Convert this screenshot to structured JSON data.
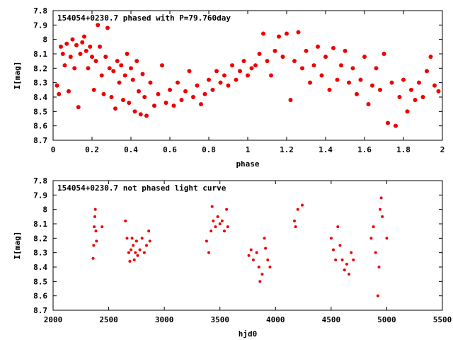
{
  "chart_data": [
    {
      "type": "scatter",
      "title": "154054+0230.7 phased with P=79.760day",
      "xlabel": "phase",
      "ylabel": "I[mag]",
      "xlim": [
        0,
        2
      ],
      "ylim": [
        8.7,
        7.8
      ],
      "y_inverted": true,
      "xticks": [
        "0",
        "0.2",
        "0.4",
        "0.6",
        "0.8",
        "1",
        "1.2",
        "1.4",
        "1.6",
        "1.8",
        "2"
      ],
      "yticks": [
        "7.8",
        "7.9",
        "8",
        "8.1",
        "8.2",
        "8.3",
        "8.4",
        "8.5",
        "8.6",
        "8.7"
      ],
      "marker_color": "#ee0000",
      "grid": false,
      "series": [
        {
          "points": [
            [
              0.02,
              8.32
            ],
            [
              0.03,
              8.38
            ],
            [
              0.04,
              8.05
            ],
            [
              0.05,
              8.1
            ],
            [
              0.06,
              8.18
            ],
            [
              0.07,
              8.03
            ],
            [
              0.08,
              8.36
            ],
            [
              0.09,
              8.12
            ],
            [
              0.1,
              8.0
            ],
            [
              0.11,
              8.2
            ],
            [
              0.12,
              8.04
            ],
            [
              0.13,
              8.47
            ],
            [
              0.14,
              8.1
            ],
            [
              0.15,
              8.02
            ],
            [
              0.16,
              7.98
            ],
            [
              0.17,
              8.08
            ],
            [
              0.18,
              8.2
            ],
            [
              0.19,
              8.05
            ],
            [
              0.2,
              8.12
            ],
            [
              0.21,
              8.35
            ],
            [
              0.22,
              8.15
            ],
            [
              0.23,
              7.9
            ],
            [
              0.24,
              8.05
            ],
            [
              0.25,
              8.25
            ],
            [
              0.26,
              8.38
            ],
            [
              0.27,
              8.12
            ],
            [
              0.28,
              7.92
            ],
            [
              0.29,
              8.2
            ],
            [
              0.3,
              8.4
            ],
            [
              0.31,
              8.22
            ],
            [
              0.32,
              8.48
            ],
            [
              0.33,
              8.15
            ],
            [
              0.34,
              8.3
            ],
            [
              0.35,
              8.18
            ],
            [
              0.36,
              8.42
            ],
            [
              0.37,
              8.25
            ],
            [
              0.38,
              8.1
            ],
            [
              0.39,
              8.44
            ],
            [
              0.4,
              8.2
            ],
            [
              0.41,
              8.28
            ],
            [
              0.42,
              8.5
            ],
            [
              0.43,
              8.15
            ],
            [
              0.44,
              8.36
            ],
            [
              0.45,
              8.52
            ],
            [
              0.46,
              8.24
            ],
            [
              0.47,
              8.4
            ],
            [
              0.48,
              8.53
            ],
            [
              0.5,
              8.3
            ],
            [
              0.52,
              8.46
            ],
            [
              0.54,
              8.38
            ],
            [
              0.56,
              8.18
            ],
            [
              0.58,
              8.44
            ],
            [
              0.6,
              8.35
            ],
            [
              0.62,
              8.46
            ],
            [
              0.64,
              8.3
            ],
            [
              0.66,
              8.42
            ],
            [
              0.68,
              8.36
            ],
            [
              0.7,
              8.22
            ],
            [
              0.72,
              8.4
            ],
            [
              0.74,
              8.32
            ],
            [
              0.76,
              8.45
            ],
            [
              0.78,
              8.38
            ],
            [
              0.8,
              8.28
            ],
            [
              0.82,
              8.35
            ],
            [
              0.84,
              8.22
            ],
            [
              0.86,
              8.3
            ],
            [
              0.88,
              8.25
            ],
            [
              0.9,
              8.32
            ],
            [
              0.92,
              8.18
            ],
            [
              0.94,
              8.28
            ],
            [
              0.96,
              8.22
            ],
            [
              0.98,
              8.15
            ],
            [
              1.0,
              8.25
            ],
            [
              1.02,
              8.2
            ],
            [
              1.04,
              8.18
            ],
            [
              1.06,
              8.1
            ],
            [
              1.08,
              7.96
            ],
            [
              1.1,
              8.15
            ],
            [
              1.12,
              8.25
            ],
            [
              1.14,
              8.08
            ],
            [
              1.16,
              7.98
            ],
            [
              1.18,
              8.12
            ],
            [
              1.2,
              7.96
            ],
            [
              1.22,
              8.42
            ],
            [
              1.24,
              8.15
            ],
            [
              1.26,
              7.95
            ],
            [
              1.28,
              8.2
            ],
            [
              1.3,
              8.08
            ],
            [
              1.32,
              8.3
            ],
            [
              1.34,
              8.18
            ],
            [
              1.36,
              8.05
            ],
            [
              1.38,
              8.25
            ],
            [
              1.4,
              8.12
            ],
            [
              1.42,
              8.35
            ],
            [
              1.44,
              8.06
            ],
            [
              1.46,
              8.28
            ],
            [
              1.48,
              8.18
            ],
            [
              1.5,
              8.08
            ],
            [
              1.52,
              8.3
            ],
            [
              1.54,
              8.2
            ],
            [
              1.56,
              8.38
            ],
            [
              1.58,
              8.28
            ],
            [
              1.6,
              8.12
            ],
            [
              1.62,
              8.45
            ],
            [
              1.64,
              8.32
            ],
            [
              1.66,
              8.2
            ],
            [
              1.68,
              8.35
            ],
            [
              1.7,
              8.1
            ],
            [
              1.72,
              8.58
            ],
            [
              1.74,
              8.3
            ],
            [
              1.76,
              8.6
            ],
            [
              1.78,
              8.4
            ],
            [
              1.8,
              8.28
            ],
            [
              1.82,
              8.5
            ],
            [
              1.84,
              8.35
            ],
            [
              1.86,
              8.42
            ],
            [
              1.88,
              8.3
            ],
            [
              1.9,
              8.4
            ],
            [
              1.92,
              8.22
            ],
            [
              1.94,
              8.12
            ],
            [
              1.96,
              8.32
            ],
            [
              1.98,
              8.36
            ]
          ]
        }
      ]
    },
    {
      "type": "scatter",
      "title": "154054+0230.7 not phased light curve",
      "xlabel": "hjd0",
      "ylabel": "I[mag]",
      "xlim": [
        2000,
        5500
      ],
      "ylim": [
        8.7,
        7.8
      ],
      "y_inverted": true,
      "xticks": [
        "2000",
        "2500",
        "3000",
        "3500",
        "4000",
        "4500",
        "5000",
        "5500"
      ],
      "yticks": [
        "7.8",
        "7.9",
        "8",
        "8.1",
        "8.2",
        "8.3",
        "8.4",
        "8.5",
        "8.6",
        "8.7"
      ],
      "marker_color": "#ee0000",
      "grid": false,
      "series": [
        {
          "points": [
            [
              2360,
              8.34
            ],
            [
              2365,
              8.25
            ],
            [
              2370,
              8.12
            ],
            [
              2375,
              8.05
            ],
            [
              2380,
              8.0
            ],
            [
              2385,
              8.15
            ],
            [
              2390,
              8.22
            ],
            [
              2440,
              8.12
            ],
            [
              2650,
              8.08
            ],
            [
              2665,
              8.2
            ],
            [
              2680,
              8.3
            ],
            [
              2690,
              8.36
            ],
            [
              2700,
              8.28
            ],
            [
              2710,
              8.2
            ],
            [
              2720,
              8.25
            ],
            [
              2730,
              8.35
            ],
            [
              2740,
              8.3
            ],
            [
              2750,
              8.22
            ],
            [
              2760,
              8.32
            ],
            [
              2780,
              8.28
            ],
            [
              2800,
              8.2
            ],
            [
              2820,
              8.3
            ],
            [
              2840,
              8.25
            ],
            [
              2860,
              8.15
            ],
            [
              2870,
              8.22
            ],
            [
              3380,
              8.22
            ],
            [
              3400,
              8.3
            ],
            [
              3420,
              8.15
            ],
            [
              3430,
              7.98
            ],
            [
              3440,
              8.08
            ],
            [
              3460,
              8.12
            ],
            [
              3480,
              8.05
            ],
            [
              3500,
              8.1
            ],
            [
              3520,
              8.08
            ],
            [
              3540,
              8.15
            ],
            [
              3560,
              8.0
            ],
            [
              3570,
              8.12
            ],
            [
              3760,
              8.32
            ],
            [
              3780,
              8.28
            ],
            [
              3800,
              8.35
            ],
            [
              3830,
              8.3
            ],
            [
              3850,
              8.4
            ],
            [
              3860,
              8.5
            ],
            [
              3880,
              8.45
            ],
            [
              3900,
              8.2
            ],
            [
              3910,
              8.27
            ],
            [
              3930,
              8.35
            ],
            [
              3950,
              8.4
            ],
            [
              4170,
              8.08
            ],
            [
              4180,
              8.12
            ],
            [
              4200,
              8.0
            ],
            [
              4240,
              7.97
            ],
            [
              4500,
              8.2
            ],
            [
              4520,
              8.28
            ],
            [
              4540,
              8.35
            ],
            [
              4560,
              8.12
            ],
            [
              4580,
              8.25
            ],
            [
              4600,
              8.35
            ],
            [
              4620,
              8.42
            ],
            [
              4640,
              8.38
            ],
            [
              4660,
              8.45
            ],
            [
              4680,
              8.3
            ],
            [
              4700,
              8.35
            ],
            [
              4860,
              8.2
            ],
            [
              4880,
              8.12
            ],
            [
              4900,
              8.3
            ],
            [
              4920,
              8.6
            ],
            [
              4930,
              8.4
            ],
            [
              4940,
              8.0
            ],
            [
              4950,
              7.92
            ],
            [
              4960,
              8.05
            ],
            [
              5000,
              8.2
            ]
          ]
        }
      ]
    }
  ]
}
